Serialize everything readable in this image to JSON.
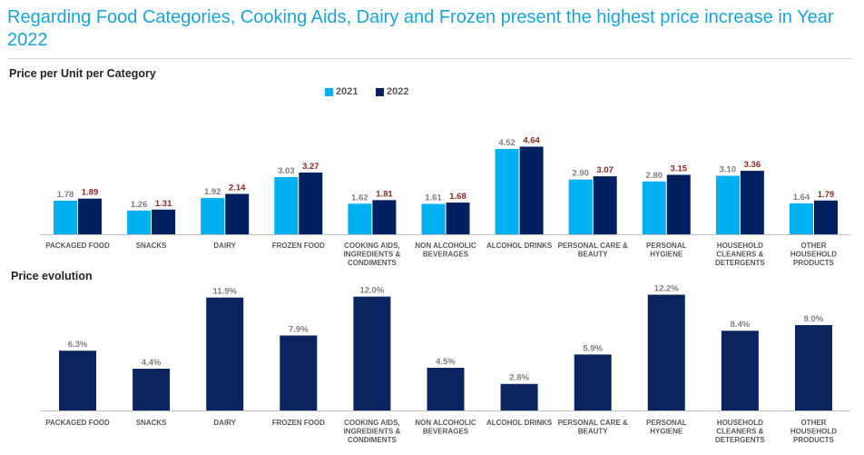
{
  "header": {
    "title": "Regarding Food Categories, Cooking Aids, Dairy and Frozen present the highest price increase in Year 2022"
  },
  "colors": {
    "title": "#1aa3d9",
    "series_2021": "#00b0f0",
    "series_2022": "#002060",
    "label_2021": "#7f7f7f",
    "label_2022": "#8b2a22",
    "evolution_bar": "#0b2460",
    "axis": "#bfbfbf",
    "category_text": "#595959"
  },
  "chart_data": [
    {
      "type": "bar",
      "title": "Price per Unit per Category",
      "categories": [
        [
          "PACKAGED FOOD"
        ],
        [
          "SNACKS"
        ],
        [
          "DAIRY"
        ],
        [
          "FROZEN FOOD"
        ],
        [
          "COOKING AIDS,",
          "INGREDIENTS &",
          "CONDIMENTS"
        ],
        [
          "NON ALCOHOLIC",
          "BEVERAGES"
        ],
        [
          "ALCOHOL DRINKS"
        ],
        [
          "PERSONAL CARE &",
          "BEAUTY"
        ],
        [
          "PERSONAL",
          "HYGIENE"
        ],
        [
          "HOUSEHOLD",
          "CLEANERS &",
          "DETERGENTS"
        ],
        [
          "OTHER",
          "HOUSEHOLD",
          "PRODUCTS"
        ]
      ],
      "series": [
        {
          "name": "2021",
          "values": [
            1.78,
            1.26,
            1.92,
            3.03,
            1.62,
            1.61,
            4.52,
            2.9,
            2.8,
            3.1,
            1.64
          ],
          "labels": [
            "1.78",
            "1.26",
            "1.92",
            "3.03",
            "1.62",
            "1.61",
            "4.52",
            "2.90",
            "2.80",
            "3.10",
            "1.64"
          ]
        },
        {
          "name": "2022",
          "values": [
            1.89,
            1.31,
            2.14,
            3.27,
            1.81,
            1.68,
            4.64,
            3.07,
            3.15,
            3.36,
            1.79
          ],
          "labels": [
            "1.89",
            "1.31",
            "2.14",
            "3.27",
            "1.81",
            "1.68",
            "4.64",
            "3.07",
            "3.15",
            "3.36",
            "1.79"
          ]
        }
      ],
      "legend": "top-center",
      "ylim": [
        0,
        5
      ],
      "grid": false
    },
    {
      "type": "bar",
      "title": "Price evolution",
      "categories": [
        [
          "PACKAGED FOOD"
        ],
        [
          "SNACKS"
        ],
        [
          "DAIRY"
        ],
        [
          "FROZEN FOOD"
        ],
        [
          "COOKING AIDS,",
          "INGREDIENTS &",
          "CONDIMENTS"
        ],
        [
          "NON ALCOHOLIC",
          "BEVERAGES"
        ],
        [
          "ALCOHOL DRINKS"
        ],
        [
          "PERSONAL CARE &",
          "BEAUTY"
        ],
        [
          "PERSONAL",
          "HYGIENE"
        ],
        [
          "HOUSEHOLD",
          "CLEANERS &",
          "DETERGENTS"
        ],
        [
          "OTHER",
          "HOUSEHOLD",
          "PRODUCTS"
        ]
      ],
      "values": [
        6.3,
        4.4,
        11.9,
        7.9,
        12.0,
        4.5,
        2.8,
        5.9,
        12.2,
        8.4,
        9.0
      ],
      "labels": [
        "6.3%",
        "4.4%",
        "11.9%",
        "7.9%",
        "12.0%",
        "4.5%",
        "2.8%",
        "5.9%",
        "12.2%",
        "8.4%",
        "9.0%"
      ],
      "ylim": [
        0,
        12.5
      ],
      "grid": false
    }
  ]
}
